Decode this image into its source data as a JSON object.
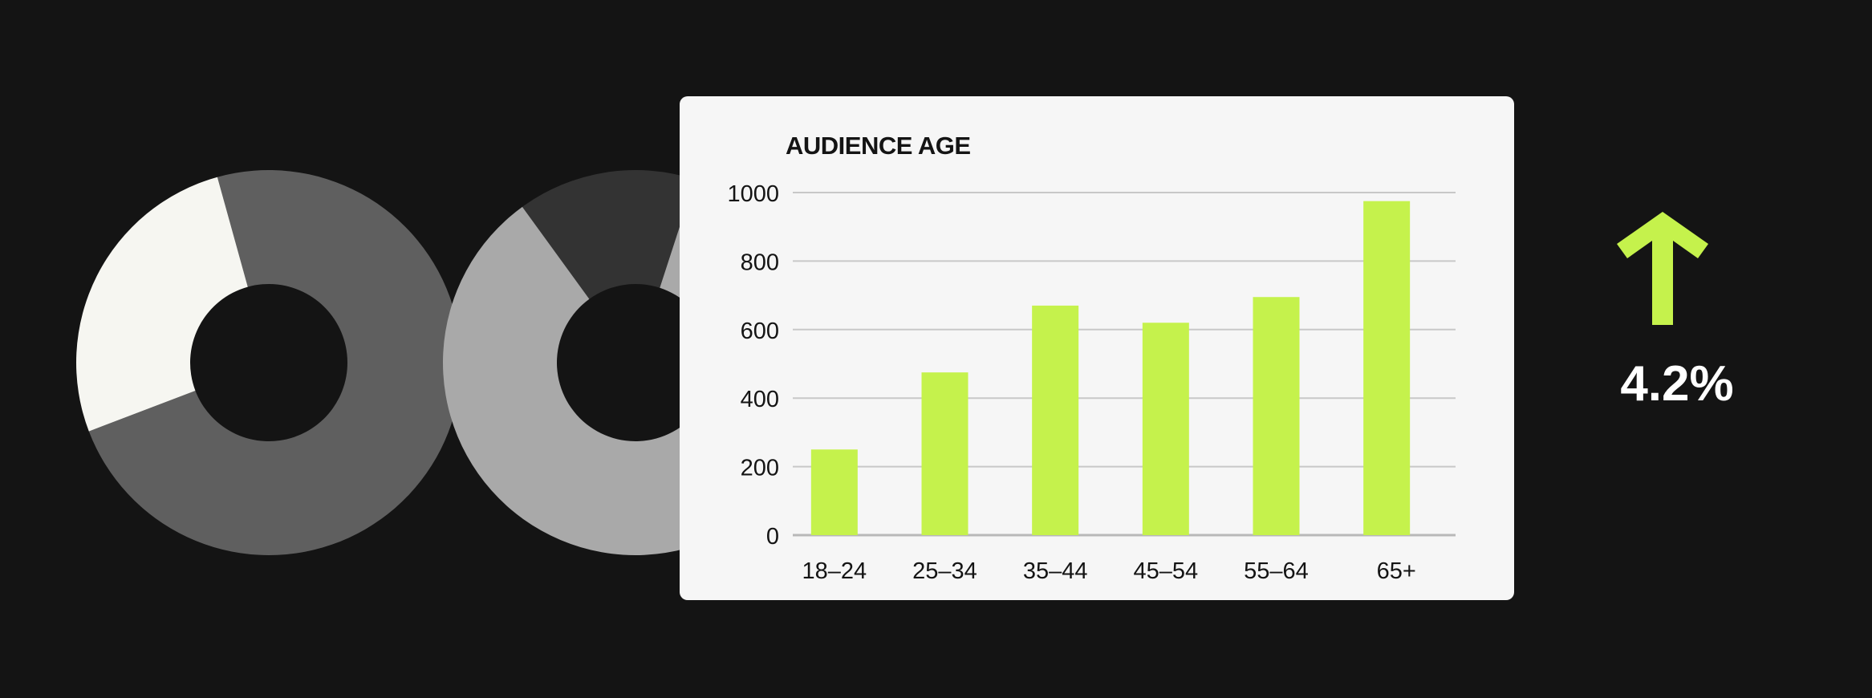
{
  "colors": {
    "background": "#141414",
    "card": "#f6f6f6",
    "bar": "#c5f24c",
    "gridline": "#c8c8c8",
    "axis_text": "#141414",
    "trend_arrow": "#c5f24c",
    "trend_text": "#ffffff"
  },
  "donut_charts": [
    {
      "segments": [
        {
          "value": 73.5,
          "color": "#5f5f5f"
        },
        {
          "value": 26.5,
          "color": "#f6f6f1"
        }
      ]
    },
    {
      "segments": [
        {
          "value": 15,
          "color": "#333333"
        },
        {
          "value": 85,
          "color": "#a9a9a9"
        }
      ]
    }
  ],
  "chart_data": {
    "type": "bar",
    "title": "AUDIENCE AGE",
    "categories": [
      "18–24",
      "25–34",
      "35–44",
      "45–54",
      "55–64",
      "65+"
    ],
    "values": [
      250,
      475,
      670,
      620,
      695,
      975
    ],
    "ylim": [
      0,
      1000
    ],
    "yticks": [
      0,
      200,
      400,
      600,
      800,
      1000
    ],
    "grid": true
  },
  "trend": {
    "direction": "up",
    "value": "4.2%"
  }
}
